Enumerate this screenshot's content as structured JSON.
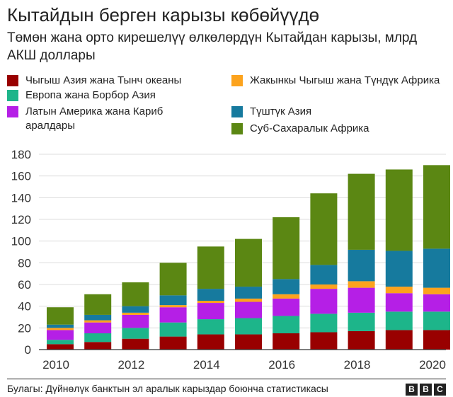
{
  "title": "Кытайдын берген карызы көбөйүүдө",
  "subtitle": "Төмөн жана орто кирешелүү өлкөлөрдүн Кытайдан карызы, млрд АКШ доллары",
  "source": "Булагы: Дүйнөлүк банктын эл аралык карыздар боюнча статистикасы",
  "logo": [
    "B",
    "B",
    "C"
  ],
  "chart_data": {
    "type": "bar",
    "stacked": true,
    "categories": [
      "2010",
      "2011",
      "2012",
      "2013",
      "2014",
      "2015",
      "2016",
      "2017",
      "2018",
      "2019",
      "2020"
    ],
    "x_tick_labels": [
      "2010",
      "2012",
      "2014",
      "2016",
      "2018",
      "2020"
    ],
    "y_ticks": [
      0,
      20,
      40,
      60,
      80,
      100,
      120,
      140,
      160,
      180
    ],
    "ylim": [
      0,
      180
    ],
    "grid": true,
    "legend_position": "top",
    "series": [
      {
        "name": "Чыгыш Азия жана Тынч океаны",
        "color": "#990000",
        "values": [
          5,
          7,
          10,
          12,
          14,
          14,
          15,
          16,
          17,
          18,
          18
        ]
      },
      {
        "name": "Европа жана Борбор Азия",
        "color": "#1db58a",
        "values": [
          4,
          8,
          10,
          13,
          14,
          15,
          16,
          17,
          17,
          17,
          17
        ]
      },
      {
        "name": "Латын Америка жана Кариб аралдары",
        "color": "#b51fe6",
        "values": [
          9,
          10,
          12,
          14,
          15,
          15,
          16,
          23,
          23,
          17,
          16
        ]
      },
      {
        "name": "Жакынкы Чыгыш жана Түндүк Африка",
        "color": "#fca31d",
        "values": [
          2,
          2,
          2,
          2,
          2,
          3,
          4,
          4,
          6,
          6,
          6
        ]
      },
      {
        "name": "Түштүк Азия",
        "color": "#167a9e",
        "values": [
          3,
          5,
          6,
          9,
          11,
          11,
          14,
          18,
          29,
          33,
          36
        ]
      },
      {
        "name": "Суб-Сахаралык Африка",
        "color": "#5b8713",
        "values": [
          16,
          19,
          22,
          30,
          39,
          44,
          57,
          66,
          70,
          75,
          77
        ]
      }
    ]
  }
}
